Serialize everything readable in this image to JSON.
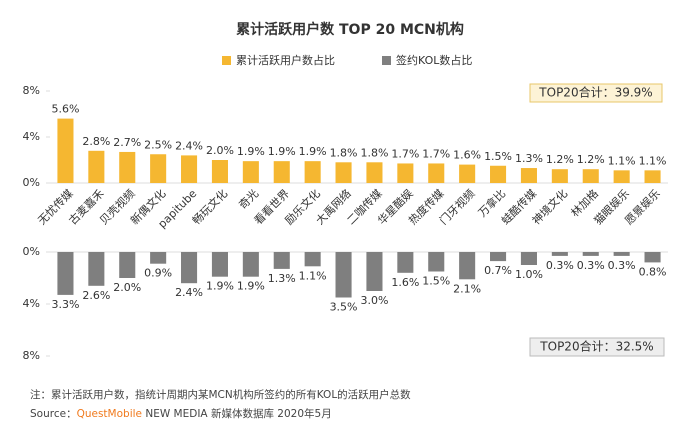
{
  "chart_data": {
    "type": "bar",
    "title": "累计活跃用户数 TOP 20 MCN机构",
    "categories": [
      "无忧传媒",
      "古麦嘉禾",
      "贝壳视频",
      "新偶文化",
      "papitube",
      "畅玩文化",
      "奇光",
      "看看世界",
      "励乐文化",
      "大禹网络",
      "二咖传媒",
      "华星酷娱",
      "热度传媒",
      "门牙视频",
      "万拿比",
      "蛙酷传媒",
      "神境文化",
      "林加格",
      "猫眼娱乐",
      "愿景娱乐"
    ],
    "series": [
      {
        "name": "累计活跃用户数占比",
        "color": "#f5b731",
        "axis": "y",
        "values": [
          5.6,
          2.8,
          2.7,
          2.5,
          2.4,
          2.0,
          1.9,
          1.9,
          1.9,
          1.8,
          1.8,
          1.7,
          1.7,
          1.6,
          1.5,
          1.3,
          1.2,
          1.2,
          1.1,
          1.1
        ],
        "value_labels": [
          "5.6%",
          "2.8%",
          "2.7%",
          "2.5%",
          "2.4%",
          "2.0%",
          "1.9%",
          "1.9%",
          "1.9%",
          "1.8%",
          "1.8%",
          "1.7%",
          "1.7%",
          "1.6%",
          "1.5%",
          "1.3%",
          "1.2%",
          "1.2%",
          "1.1%",
          "1.1%"
        ]
      },
      {
        "name": "签约KOL数占比",
        "color": "#7f7f7f",
        "axis": "y2",
        "values": [
          3.3,
          2.6,
          2.0,
          0.9,
          2.4,
          1.9,
          1.9,
          1.3,
          1.1,
          3.5,
          3.0,
          1.6,
          1.5,
          2.1,
          0.7,
          1.0,
          0.3,
          0.3,
          0.3,
          0.8
        ],
        "value_labels": [
          "3.3%",
          "2.6%",
          "2.0%",
          "0.9%",
          "2.4%",
          "1.9%",
          "1.9%",
          "1.3%",
          "1.1%",
          "3.5%",
          "3.0%",
          "1.6%",
          "1.5%",
          "2.1%",
          "0.7%",
          "1.0%",
          "0.3%",
          "0.3%",
          "0.3%",
          "0.8%"
        ]
      }
    ],
    "ylim": [
      0,
      8
    ],
    "yticks": [
      {
        "value": 0,
        "label": "0%"
      },
      {
        "value": 4,
        "label": "4%"
      },
      {
        "value": 8,
        "label": "8%"
      }
    ],
    "y2lim": [
      0,
      8
    ],
    "y2ticks": [
      {
        "value": 0,
        "label": "0%"
      },
      {
        "value": 4,
        "label": "4%"
      },
      {
        "value": 8,
        "label": "8%"
      }
    ],
    "annotations": [
      "TOP20合计：39.9%",
      "TOP20合计：32.5%"
    ]
  },
  "footer": {
    "note": "注：累计活跃用户数，指统计周期内某MCN机构所签约的所有KOL的活跃用户总数",
    "source_label": "Source：",
    "source_brand": "QuestMobile",
    "source_rest": "NEW MEDIA 新媒体数据库 2020年5月"
  }
}
